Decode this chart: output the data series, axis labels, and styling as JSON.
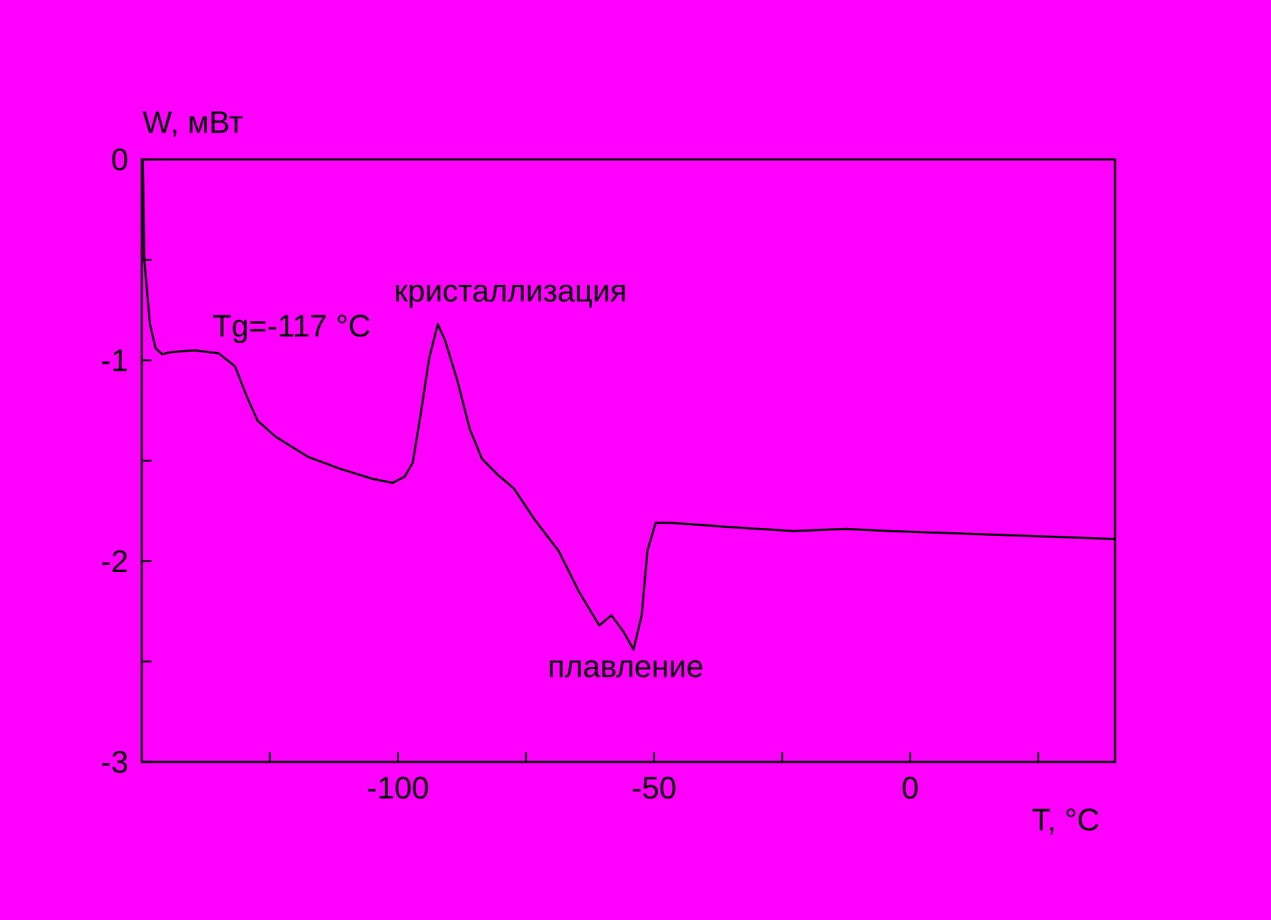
{
  "chart_data": {
    "type": "line",
    "xlabel": "T, °C",
    "ylabel": "W, мВт",
    "color": "#000000",
    "xlim": [
      -150,
      40
    ],
    "ylim": [
      -3,
      0
    ],
    "xticks": [
      {
        "value": -125,
        "label": null
      },
      -100,
      {
        "value": -75,
        "label": null
      },
      -50,
      {
        "value": -25,
        "label": null
      },
      0,
      {
        "value": 25,
        "label": null
      }
    ],
    "yticks": [
      -3,
      {
        "value": -2.5,
        "label": null
      },
      -2,
      {
        "value": -1.5,
        "label": null
      },
      -1,
      {
        "value": -0.5,
        "label": null
      },
      0
    ],
    "x": [
      -149.8,
      -149.5,
      -148.4,
      -147.3,
      -146,
      -144.5,
      -139.7,
      -135,
      -131.8,
      -129.5,
      -127.4,
      -123.9,
      -117.6,
      -111.3,
      -105,
      -101,
      -98.7,
      -97.1,
      -95.5,
      -93.9,
      -92.2,
      -90.8,
      -88.4,
      -86,
      -83.6,
      -80.5,
      -77.3,
      -73.4,
      -68.6,
      -64.7,
      -60.7,
      -58.3,
      -56,
      -54,
      -52.4,
      -51.3,
      -49.7,
      -46.5,
      -35.5,
      -22.8,
      -12.6,
      -3.9,
      40
    ],
    "values": [
      0,
      -0.5,
      -0.82,
      -0.94,
      -0.97,
      -0.96,
      -0.95,
      -0.965,
      -1.03,
      -1.18,
      -1.3,
      -1.38,
      -1.48,
      -1.54,
      -1.59,
      -1.61,
      -1.58,
      -1.51,
      -1.26,
      -0.99,
      -0.82,
      -0.9,
      -1.1,
      -1.34,
      -1.49,
      -1.57,
      -1.64,
      -1.79,
      -1.95,
      -2.15,
      -2.32,
      -2.27,
      -2.35,
      -2.44,
      -2.27,
      -1.95,
      -1.81,
      -1.81,
      -1.83,
      -1.85,
      -1.84,
      -1.85,
      -1.89
    ],
    "annotations": [
      {
        "text": "Tg=-117 °C",
        "x": -131.8,
        "y": -1.03
      },
      {
        "text": "кристаллизация",
        "x": -92.2,
        "y": -0.82
      },
      {
        "text": "плавление",
        "x": -54,
        "y": -2.44
      }
    ]
  }
}
